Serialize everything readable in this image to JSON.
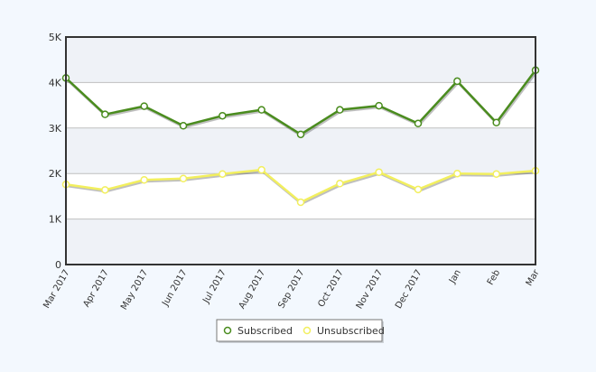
{
  "chart_data": {
    "type": "line",
    "categories": [
      "Mar 2017",
      "Apr 2017",
      "May 2017",
      "Jun 2017",
      "Jul 2017",
      "Aug 2017",
      "Sep 2017",
      "Oct 2017",
      "Nov 2017",
      "Dec 2017",
      "Jan",
      "Feb",
      "Mar"
    ],
    "series": [
      {
        "name": "Subscribed",
        "color": "#4a8c1e",
        "values": [
          4100,
          3300,
          3480,
          3050,
          3270,
          3400,
          2860,
          3400,
          3490,
          3100,
          4030,
          3120,
          4270
        ]
      },
      {
        "name": "Unsubscribed",
        "color": "#f2ef5e",
        "values": [
          1760,
          1640,
          1860,
          1890,
          1990,
          2080,
          1370,
          1780,
          2030,
          1650,
          2000,
          1990,
          2060
        ]
      }
    ],
    "ylim": [
      0,
      5000
    ],
    "yticks": [
      {
        "value": 0,
        "label": "0"
      },
      {
        "value": 1000,
        "label": "1K"
      },
      {
        "value": 2000,
        "label": "2K"
      },
      {
        "value": 3000,
        "label": "3K"
      },
      {
        "value": 4000,
        "label": "4K"
      },
      {
        "value": 5000,
        "label": "5K"
      }
    ],
    "grid": true,
    "alternate_bands": true,
    "legend_position": "bottom-center",
    "colors": {
      "plot_bg": "#ffffff",
      "band": "#eff2f7",
      "grid": "#bfbfbf",
      "axis": "#333333",
      "page_bg": "#f3f8fe"
    }
  }
}
